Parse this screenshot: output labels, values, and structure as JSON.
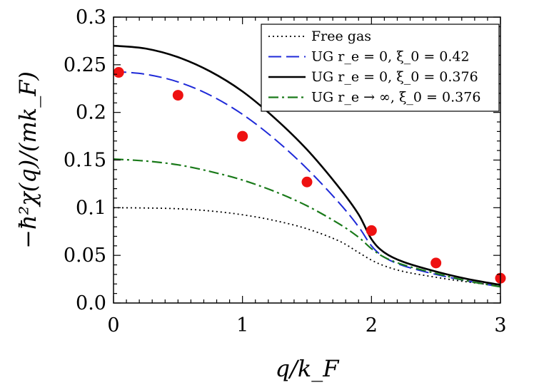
{
  "chart_data": {
    "type": "line",
    "xlabel": "q/k_F",
    "ylabel": "−ħ²χ(q)/(mk_F)",
    "xlim": [
      0,
      3
    ],
    "ylim": [
      0,
      0.3
    ],
    "x_ticks": [
      "0",
      "1",
      "2",
      "3"
    ],
    "y_ticks": [
      "0.0",
      "0.05",
      "0.1",
      "0.15",
      "0.2",
      "0.25",
      "0.3"
    ],
    "grid": false,
    "legend_position": "top-right",
    "series": [
      {
        "name": "Free gas",
        "style": "dotted",
        "color": "#000000",
        "points": [
          [
            0,
            0.1
          ],
          [
            0.25,
            0.0997
          ],
          [
            0.5,
            0.0989
          ],
          [
            0.75,
            0.0966
          ],
          [
            1.0,
            0.0926
          ],
          [
            1.25,
            0.0865
          ],
          [
            1.5,
            0.0779
          ],
          [
            1.75,
            0.065
          ],
          [
            1.9,
            0.053
          ],
          [
            2.0,
            0.045
          ],
          [
            2.1,
            0.039
          ],
          [
            2.25,
            0.033
          ],
          [
            2.5,
            0.027
          ],
          [
            2.75,
            0.022
          ],
          [
            3.0,
            0.018
          ]
        ]
      },
      {
        "name": "UG r_e = 0, ξ_0 = 0.42",
        "style": "dashed",
        "color": "#1f2ad8",
        "points": [
          [
            0,
            0.243
          ],
          [
            0.25,
            0.24
          ],
          [
            0.5,
            0.232
          ],
          [
            0.75,
            0.218
          ],
          [
            1.0,
            0.198
          ],
          [
            1.25,
            0.172
          ],
          [
            1.5,
            0.141
          ],
          [
            1.75,
            0.105
          ],
          [
            1.9,
            0.08
          ],
          [
            2.0,
            0.06
          ],
          [
            2.1,
            0.048
          ],
          [
            2.25,
            0.039
          ],
          [
            2.5,
            0.03
          ],
          [
            2.75,
            0.023
          ],
          [
            3.0,
            0.017
          ]
        ]
      },
      {
        "name": "UG r_e = 0, ξ_0 = 0.376",
        "style": "solid",
        "color": "#000000",
        "points": [
          [
            0,
            0.27
          ],
          [
            0.25,
            0.267
          ],
          [
            0.5,
            0.258
          ],
          [
            0.75,
            0.243
          ],
          [
            1.0,
            0.222
          ],
          [
            1.25,
            0.194
          ],
          [
            1.5,
            0.161
          ],
          [
            1.75,
            0.121
          ],
          [
            1.9,
            0.093
          ],
          [
            2.0,
            0.067
          ],
          [
            2.1,
            0.053
          ],
          [
            2.25,
            0.043
          ],
          [
            2.5,
            0.033
          ],
          [
            2.75,
            0.025
          ],
          [
            3.0,
            0.019
          ]
        ]
      },
      {
        "name": "UG r_e → ∞, ξ_0 = 0.376",
        "style": "dashdot",
        "color": "#1a7a1a",
        "points": [
          [
            0,
            0.151
          ],
          [
            0.25,
            0.149
          ],
          [
            0.5,
            0.145
          ],
          [
            0.75,
            0.138
          ],
          [
            1.0,
            0.129
          ],
          [
            1.25,
            0.117
          ],
          [
            1.5,
            0.102
          ],
          [
            1.75,
            0.083
          ],
          [
            1.9,
            0.069
          ],
          [
            2.0,
            0.057
          ],
          [
            2.1,
            0.048
          ],
          [
            2.25,
            0.04
          ],
          [
            2.5,
            0.031
          ],
          [
            2.75,
            0.023
          ],
          [
            3.0,
            0.017
          ]
        ]
      }
    ],
    "markers": {
      "name": "data points",
      "color": "#ee1111",
      "x": [
        0.04,
        0.5,
        1.0,
        1.5,
        2.0,
        2.5,
        3.0
      ],
      "y": [
        0.242,
        0.218,
        0.175,
        0.127,
        0.076,
        0.042,
        0.026
      ]
    }
  }
}
